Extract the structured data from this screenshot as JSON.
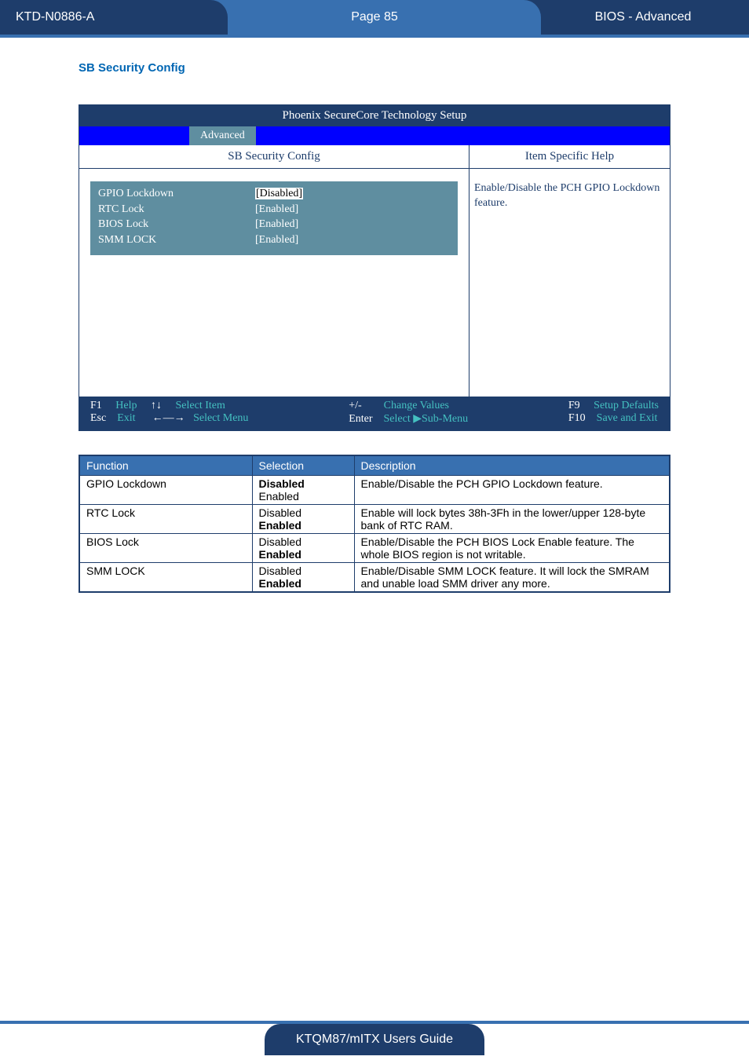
{
  "header": {
    "doc_id": "KTD-N0886-A",
    "page_label": "Page 85",
    "section": "BIOS  - Advanced"
  },
  "section_title": "SB Security Config",
  "bios": {
    "title": "Phoenix SecureCore Technology Setup",
    "tab": "Advanced",
    "panel_title": "SB Security Config",
    "help_title": "Item Specific Help",
    "help_text": "Enable/Disable the PCH GPIO Lockdown feature.",
    "settings": [
      {
        "label": "GPIO Lockdown",
        "value": "[Disabled]",
        "selected": true
      },
      {
        "label": "RTC Lock",
        "value": "[Enabled]",
        "selected": false
      },
      {
        "label": "BIOS Lock",
        "value": "[Enabled]",
        "selected": false
      },
      {
        "label": "SMM LOCK",
        "value": "[Enabled]",
        "selected": false
      }
    ],
    "footer": {
      "f1": "F1",
      "help": "Help",
      "arrows_v": "↑↓",
      "select_item": "Select Item",
      "pm": "+/-",
      "change_values": "Change Values",
      "f9": "F9",
      "setup_defaults": "Setup Defaults",
      "esc": "Esc",
      "exit": "Exit",
      "arrows_h": "←―→",
      "select_menu": "Select Menu",
      "enter": "Enter",
      "select_sub": "Select ▶Sub-Menu",
      "f10": "F10",
      "save_exit": "Save and Exit"
    }
  },
  "table": {
    "headers": {
      "function": "Function",
      "selection": "Selection",
      "description": "Description"
    },
    "rows": [
      {
        "function": "GPIO Lockdown",
        "selection_html": "<span class='b'>Disabled</span><br>Enabled",
        "description": "Enable/Disable the PCH GPIO Lockdown feature."
      },
      {
        "function": "RTC Lock",
        "selection_html": "Disabled<br><span class='b'>Enabled</span>",
        "description": "Enable will lock bytes 38h-3Fh in the lower/upper 128-byte bank of RTC RAM."
      },
      {
        "function": "BIOS Lock",
        "selection_html": "Disabled<br><span class='b'>Enabled</span>",
        "description": "Enable/Disable the PCH BIOS Lock Enable feature. The whole BIOS region is not writable."
      },
      {
        "function": "SMM LOCK",
        "selection_html": "Disabled<br><span class='b'>Enabled</span>",
        "description": "Enable/Disable SMM LOCK feature. It will lock the SMRAM and unable load SMM driver any more."
      }
    ]
  },
  "footer": {
    "guide": "KTQM87/mITX Users Guide"
  },
  "colors": {
    "dark_blue": "#1e3d6b",
    "mid_blue": "#3870b0",
    "bios_blue": "#0000ff",
    "panel_teal": "#5f8ea0",
    "link_blue": "#0066b3"
  }
}
